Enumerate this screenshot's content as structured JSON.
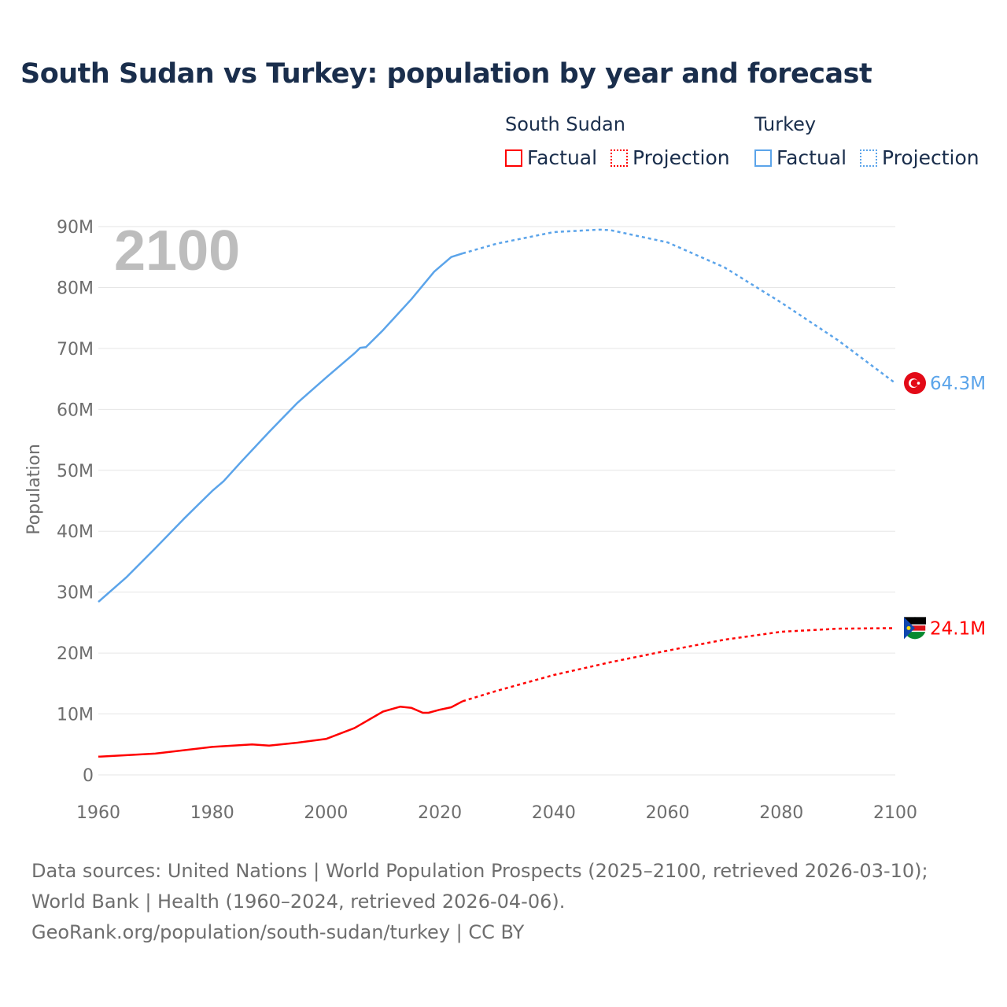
{
  "title": "South Sudan vs Turkey: population by year and forecast",
  "legend": {
    "groups": [
      {
        "name": "South Sudan",
        "factual": "Factual",
        "projection": "Projection",
        "color": "#ff0000"
      },
      {
        "name": "Turkey",
        "factual": "Factual",
        "projection": "Projection",
        "color": "#5ba4ea"
      }
    ]
  },
  "footer": {
    "sources": "Data sources: United Nations | World Population Prospects (2025–2100, retrieved 2026-03-10); World Bank | Health (1960–2024, retrieved 2026-04-06).",
    "credit": "GeoRank.org/population/south-sudan/turkey | CC BY"
  },
  "chart_data": {
    "type": "line",
    "title": "South Sudan vs Turkey: population by year and forecast",
    "year_watermark": "2100",
    "xlabel": "",
    "ylabel": "Population",
    "xlim": [
      1960,
      2100
    ],
    "ylim": [
      0,
      90
    ],
    "x_ticks": [
      "1960",
      "1980",
      "2000",
      "2020",
      "2040",
      "2060",
      "2080",
      "2100"
    ],
    "y_ticks": [
      "0",
      "10M",
      "20M",
      "30M",
      "40M",
      "50M",
      "60M",
      "70M",
      "80M",
      "90M"
    ],
    "grid": true,
    "series": [
      {
        "name": "Turkey",
        "unit": "millions",
        "color": "#5ba4ea",
        "end_label": "64.3M",
        "factual": [
          [
            1960,
            28.4
          ],
          [
            1965,
            32.5
          ],
          [
            1970,
            37.2
          ],
          [
            1975,
            42.0
          ],
          [
            1980,
            46.6
          ],
          [
            1982,
            48.2
          ],
          [
            1985,
            51.3
          ],
          [
            1990,
            56.3
          ],
          [
            1995,
            61.1
          ],
          [
            2000,
            65.2
          ],
          [
            2005,
            69.2
          ],
          [
            2006,
            70.1
          ],
          [
            2007,
            70.2
          ],
          [
            2010,
            73.0
          ],
          [
            2015,
            78.1
          ],
          [
            2019,
            82.6
          ],
          [
            2022,
            85.0
          ],
          [
            2024,
            85.6
          ]
        ],
        "projection": [
          [
            2024,
            85.6
          ],
          [
            2030,
            87.2
          ],
          [
            2040,
            89.1
          ],
          [
            2048,
            89.5
          ],
          [
            2050,
            89.4
          ],
          [
            2060,
            87.4
          ],
          [
            2070,
            83.3
          ],
          [
            2080,
            77.5
          ],
          [
            2090,
            71.3
          ],
          [
            2100,
            64.3
          ]
        ]
      },
      {
        "name": "South Sudan",
        "unit": "millions",
        "color": "#ff0000",
        "end_label": "24.1M",
        "factual": [
          [
            1960,
            3.0
          ],
          [
            1970,
            3.5
          ],
          [
            1980,
            4.6
          ],
          [
            1987,
            5.0
          ],
          [
            1990,
            4.8
          ],
          [
            1995,
            5.3
          ],
          [
            2000,
            5.9
          ],
          [
            2005,
            7.7
          ],
          [
            2010,
            10.4
          ],
          [
            2013,
            11.2
          ],
          [
            2015,
            11.0
          ],
          [
            2017,
            10.2
          ],
          [
            2018,
            10.2
          ],
          [
            2020,
            10.7
          ],
          [
            2022,
            11.1
          ],
          [
            2024,
            12.1
          ]
        ],
        "projection": [
          [
            2024,
            12.1
          ],
          [
            2030,
            13.8
          ],
          [
            2040,
            16.4
          ],
          [
            2050,
            18.5
          ],
          [
            2060,
            20.4
          ],
          [
            2070,
            22.2
          ],
          [
            2080,
            23.5
          ],
          [
            2090,
            24.0
          ],
          [
            2100,
            24.1
          ]
        ]
      }
    ]
  }
}
